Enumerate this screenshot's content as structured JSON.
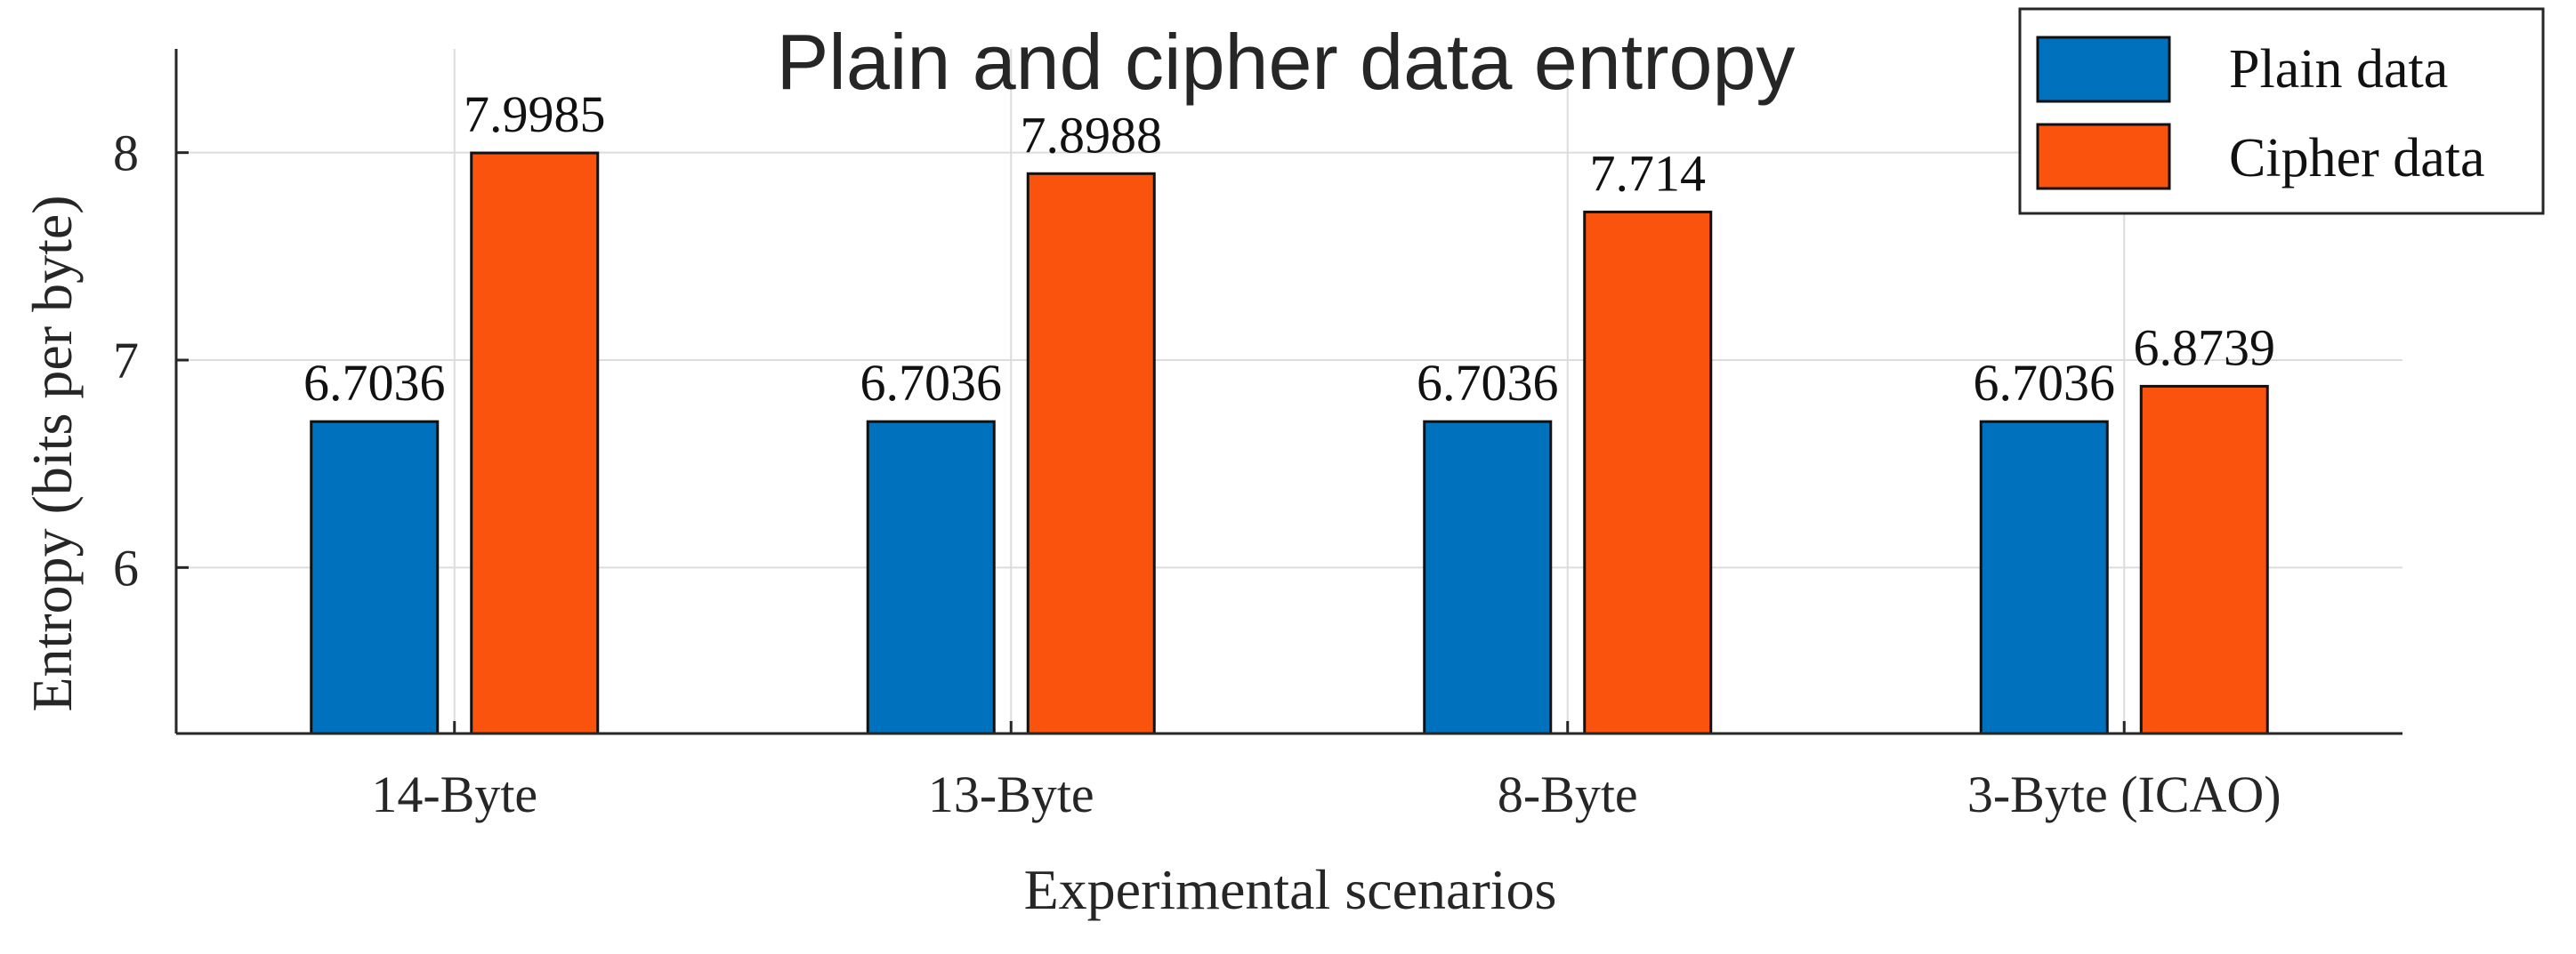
{
  "chart_data": {
    "type": "bar",
    "title": "Plain and cipher data entropy",
    "xlabel": "Experimental scenarios",
    "ylabel": "Entropy (bits per byte)",
    "categories": [
      "14-Byte",
      "13-Byte",
      "8-Byte",
      "3-Byte (ICAO)"
    ],
    "series": [
      {
        "name": "Plain data",
        "color": "#0072BD",
        "values": [
          6.7036,
          6.7036,
          6.7036,
          6.7036
        ],
        "labels": [
          "6.7036",
          "6.7036",
          "6.7036",
          "6.7036"
        ]
      },
      {
        "name": "Cipher data",
        "color": "#F9530D",
        "values": [
          7.9985,
          7.8988,
          7.714,
          6.8739
        ],
        "labels": [
          "7.9985",
          "7.8988",
          "7.714",
          "6.8739"
        ]
      }
    ],
    "ylim": [
      5.2,
      8.5
    ],
    "yticks": [
      6,
      7,
      8
    ],
    "ytick_labels": [
      "6",
      "7",
      "8"
    ],
    "grid": true,
    "legend_position": "top-right"
  }
}
